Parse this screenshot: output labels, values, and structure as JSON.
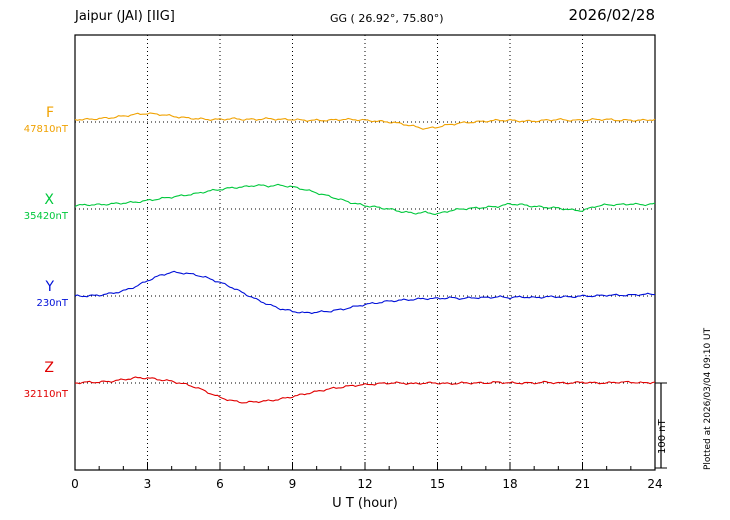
{
  "header": {
    "station": "Jaipur (JAI)  [IIG]",
    "coords": "GG ( 26.92°,  75.80°)",
    "date": "2026/02/28"
  },
  "axis": {
    "xlabel": "U T (hour)"
  },
  "scalebar": {
    "label": "100 nT",
    "value_nT": 100
  },
  "footer_note": "Plotted at 2026/03/04 09:10 UT",
  "chart_data": {
    "type": "line",
    "title": "Jaipur (JAI) [IIG] magnetogram, 2026/02/28",
    "xlabel": "U T (hour)",
    "x_start": 0,
    "x_end": 24,
    "x_step_hours": 0.5,
    "x_ticks": [
      0,
      3,
      6,
      9,
      12,
      15,
      18,
      21,
      24
    ],
    "scale_bar_nT": 100,
    "grid": "dotted vertical lines every 3 h; dotted horizontal baseline per trace",
    "legend_position": "left baseline labels",
    "series": [
      {
        "name": "F",
        "color": "#f0a202",
        "baseline_label": "47810nT",
        "baseline_nT": 47810,
        "offsets_nT": [
          3,
          3,
          4,
          5,
          7,
          9,
          10,
          9,
          7,
          5,
          4,
          3,
          3,
          4,
          3,
          3,
          4,
          3,
          3,
          2,
          2,
          2,
          3,
          3,
          2,
          1,
          0,
          -2,
          -5,
          -8,
          -6,
          -3,
          -1,
          0,
          1,
          2,
          2,
          1,
          1,
          2,
          3,
          2,
          2,
          3,
          3,
          2,
          2,
          2,
          3
        ]
      },
      {
        "name": "X",
        "color": "#00c83c",
        "baseline_label": "35420nT",
        "baseline_nT": 35420,
        "offsets_nT": [
          4,
          5,
          5,
          6,
          7,
          8,
          10,
          12,
          14,
          16,
          18,
          21,
          23,
          25,
          26,
          28,
          27,
          28,
          26,
          23,
          19,
          15,
          11,
          7,
          4,
          2,
          0,
          -3,
          -5,
          -4,
          -6,
          -2,
          0,
          1,
          2,
          3,
          6,
          5,
          3,
          2,
          1,
          -1,
          -2,
          3,
          5,
          5,
          6,
          5,
          6
        ]
      },
      {
        "name": "Y",
        "color": "#0010d8",
        "baseline_label": "230nT",
        "baseline_nT": 230,
        "offsets_nT": [
          0,
          0,
          1,
          3,
          6,
          11,
          18,
          24,
          28,
          27,
          25,
          21,
          16,
          10,
          3,
          -4,
          -10,
          -15,
          -18,
          -20,
          -19,
          -18,
          -16,
          -13,
          -10,
          -8,
          -6,
          -5,
          -4,
          -3,
          -3,
          -2,
          -3,
          -2,
          -2,
          -1,
          -2,
          -1,
          -2,
          -1,
          -1,
          -1,
          0,
          0,
          1,
          1,
          1,
          2,
          2
        ]
      },
      {
        "name": "Z",
        "color": "#e00000",
        "baseline_label": "32110nT",
        "baseline_nT": 32110,
        "offsets_nT": [
          0,
          1,
          1,
          2,
          4,
          6,
          6,
          4,
          2,
          -1,
          -5,
          -11,
          -17,
          -21,
          -23,
          -22,
          -21,
          -19,
          -16,
          -13,
          -10,
          -7,
          -5,
          -3,
          -2,
          -1,
          0,
          0,
          -1,
          0,
          0,
          -1,
          0,
          0,
          0,
          1,
          0,
          0,
          0,
          1,
          0,
          0,
          1,
          0,
          0,
          1,
          1,
          0,
          1
        ]
      }
    ]
  }
}
